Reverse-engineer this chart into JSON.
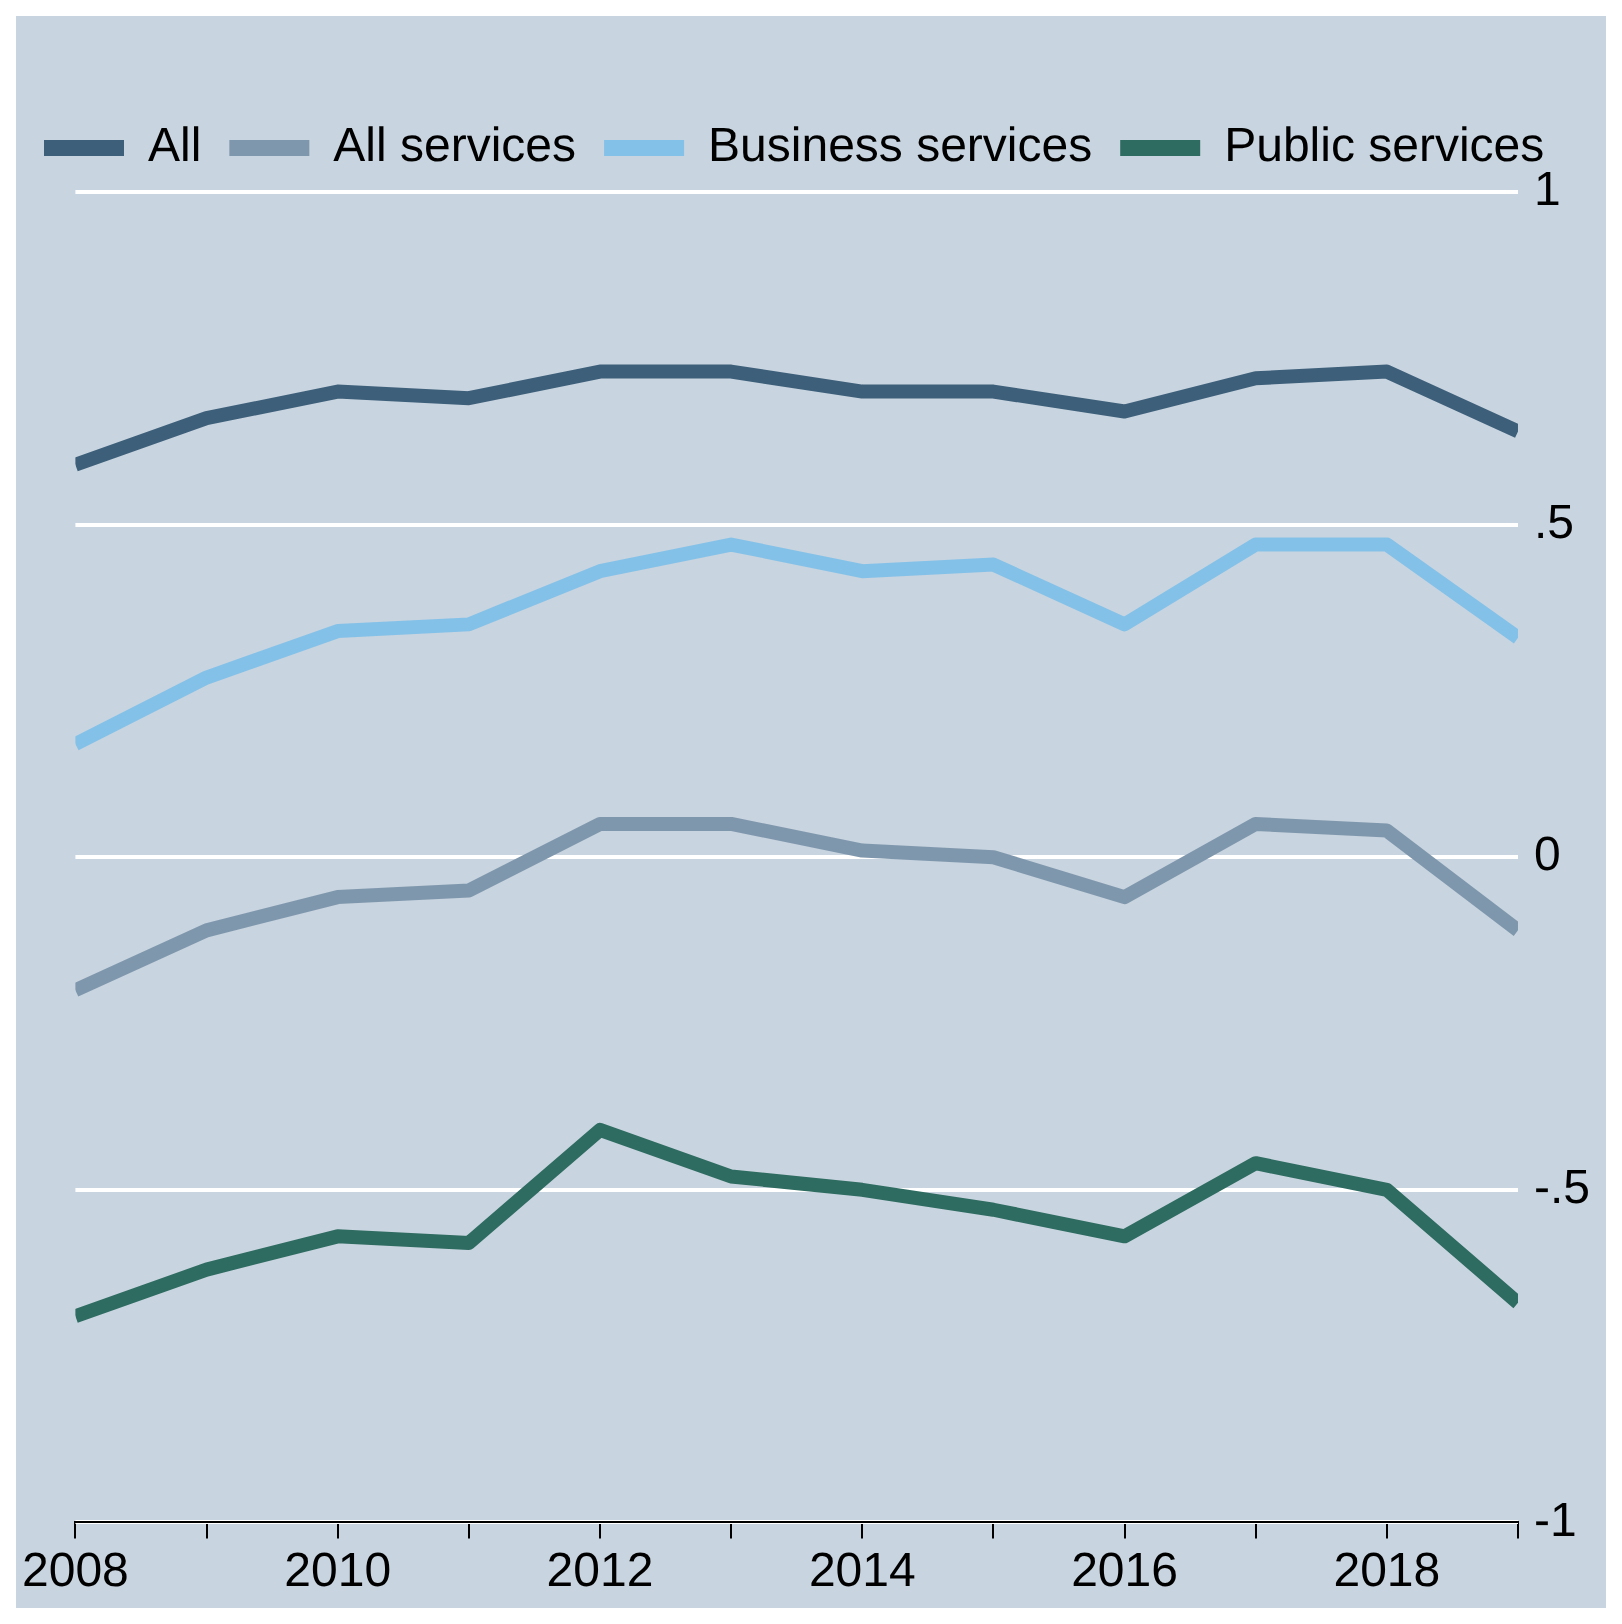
{
  "chart_data": {
    "type": "line",
    "x": [
      2008,
      2009,
      2010,
      2011,
      2012,
      2013,
      2014,
      2015,
      2016,
      2017,
      2018,
      2019
    ],
    "series": [
      {
        "name": "All",
        "color": "#3d5f7a",
        "values": [
          0.59,
          0.66,
          0.7,
          0.69,
          0.73,
          0.73,
          0.7,
          0.7,
          0.67,
          0.72,
          0.73,
          0.64
        ]
      },
      {
        "name": "All services",
        "color": "#7f97ad",
        "values": [
          -0.2,
          -0.11,
          -0.06,
          -0.05,
          0.05,
          0.05,
          0.01,
          0.0,
          -0.06,
          0.05,
          0.04,
          -0.11
        ]
      },
      {
        "name": "Business services",
        "color": "#84c1e8",
        "values": [
          0.17,
          0.27,
          0.34,
          0.35,
          0.43,
          0.47,
          0.43,
          0.44,
          0.35,
          0.47,
          0.47,
          0.33
        ]
      },
      {
        "name": "Public services",
        "color": "#2e6b60",
        "values": [
          -0.69,
          -0.62,
          -0.57,
          -0.58,
          -0.41,
          -0.48,
          -0.5,
          -0.53,
          -0.57,
          -0.46,
          -0.5,
          -0.67
        ]
      }
    ],
    "xlim": [
      2008,
      2019
    ],
    "xticks": [
      2008,
      {
        "value": 2009,
        "label": null
      },
      2010,
      {
        "value": 2011,
        "label": null
      },
      2012,
      {
        "value": 2013,
        "label": null
      },
      2014,
      {
        "value": 2015,
        "label": null
      },
      2016,
      {
        "value": 2017,
        "label": null
      },
      2018,
      {
        "value": 2019,
        "label": null
      }
    ],
    "ylim": [
      -1,
      1
    ],
    "yticks": [
      {
        "value": -1,
        "label": "-1"
      },
      {
        "value": -0.5,
        "label": "-.5"
      },
      0,
      {
        "value": 0.5,
        "label": ".5"
      },
      1
    ],
    "grid": "y",
    "legend": "top left",
    "marker": "none",
    "line_style": "solid"
  }
}
